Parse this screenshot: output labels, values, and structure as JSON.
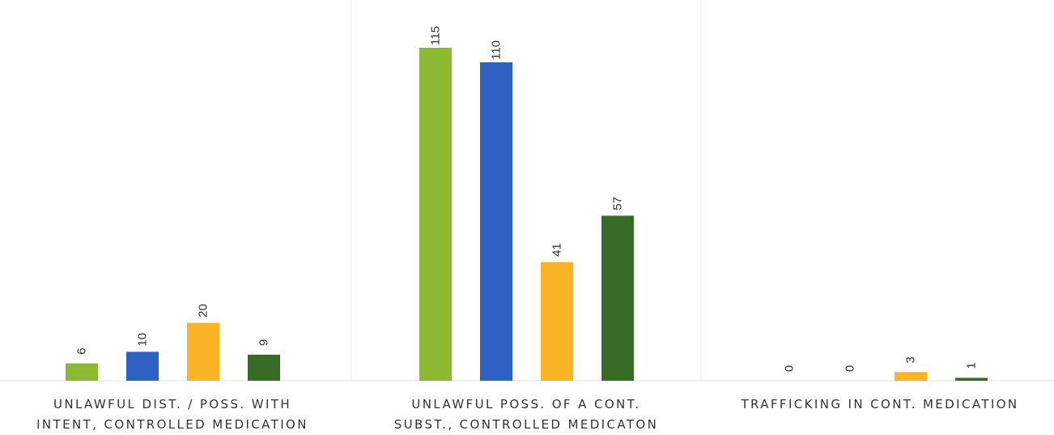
{
  "chart_data": {
    "type": "bar",
    "categories": [
      [
        "UNLAWFUL DIST. / POSS. WITH",
        "INTENT, CONTROLLED MEDICATION"
      ],
      [
        "UNLAWFUL POSS. OF A CONT.",
        "SUBST., CONTROLLED MEDICATON"
      ],
      [
        "TRAFFICKING IN CONT. MEDICATION"
      ]
    ],
    "series": [
      {
        "values": [
          6,
          115,
          0
        ],
        "color": "#8db832"
      },
      {
        "values": [
          10,
          110,
          0
        ],
        "color": "#2f60c4"
      },
      {
        "values": [
          20,
          41,
          3
        ],
        "color": "#fcb427"
      },
      {
        "values": [
          9,
          57,
          1
        ],
        "color": "#386b26"
      }
    ],
    "ylim": [
      0,
      115
    ],
    "grid": false,
    "legend": "none",
    "title": "",
    "xlabel": "",
    "ylabel": ""
  }
}
